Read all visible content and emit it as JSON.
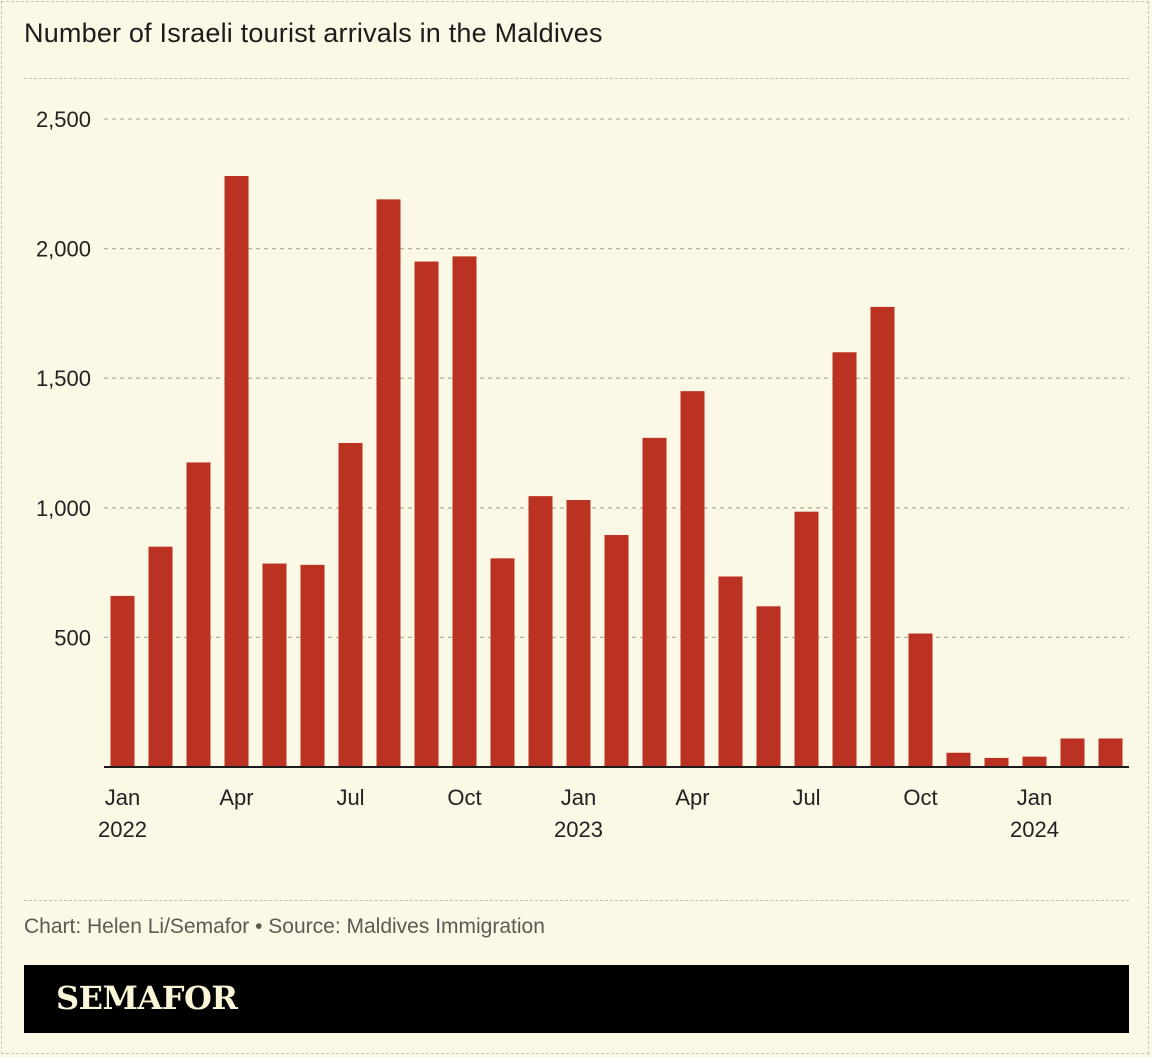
{
  "title": "Number of Israeli tourist arrivals in the Maldives",
  "footer": "Chart: Helen Li/Semafor • Source: Maldives Immigration",
  "brand": "SEMAFOR",
  "colors": {
    "bar": "#bb3222",
    "background": "#fcf8e6",
    "brandbar": "#000000"
  },
  "chart_data": {
    "type": "bar",
    "title": "Number of Israeli tourist arrivals in the Maldives",
    "xlabel": "",
    "ylabel": "",
    "ylim": [
      0,
      2500
    ],
    "yticks": [
      500,
      1000,
      1500,
      2000,
      2500
    ],
    "ytick_labels": [
      "500",
      "1,000",
      "1,500",
      "2,000",
      "2,500"
    ],
    "grid": "horizontal dashed",
    "categories": [
      "Jan 2022",
      "Feb 2022",
      "Mar 2022",
      "Apr 2022",
      "May 2022",
      "Jun 2022",
      "Jul 2022",
      "Aug 2022",
      "Sep 2022",
      "Oct 2022",
      "Nov 2022",
      "Dec 2022",
      "Jan 2023",
      "Feb 2023",
      "Mar 2023",
      "Apr 2023",
      "May 2023",
      "Jun 2023",
      "Jul 2023",
      "Aug 2023",
      "Sep 2023",
      "Oct 2023",
      "Nov 2023",
      "Dec 2023",
      "Jan 2024",
      "Feb 2024",
      "Mar 2024"
    ],
    "values": [
      660,
      850,
      1175,
      2280,
      785,
      780,
      1250,
      2190,
      1950,
      1970,
      805,
      1045,
      1030,
      895,
      1270,
      1450,
      735,
      620,
      985,
      1600,
      1775,
      515,
      55,
      35,
      40,
      110,
      110
    ],
    "x_tick_labels": [
      {
        "index": 0,
        "month": "Jan",
        "year": "2022"
      },
      {
        "index": 3,
        "month": "Apr",
        "year": ""
      },
      {
        "index": 6,
        "month": "Jul",
        "year": ""
      },
      {
        "index": 9,
        "month": "Oct",
        "year": ""
      },
      {
        "index": 12,
        "month": "Jan",
        "year": "2023"
      },
      {
        "index": 15,
        "month": "Apr",
        "year": ""
      },
      {
        "index": 18,
        "month": "Jul",
        "year": ""
      },
      {
        "index": 21,
        "month": "Oct",
        "year": ""
      },
      {
        "index": 24,
        "month": "Jan",
        "year": "2024"
      }
    ]
  }
}
